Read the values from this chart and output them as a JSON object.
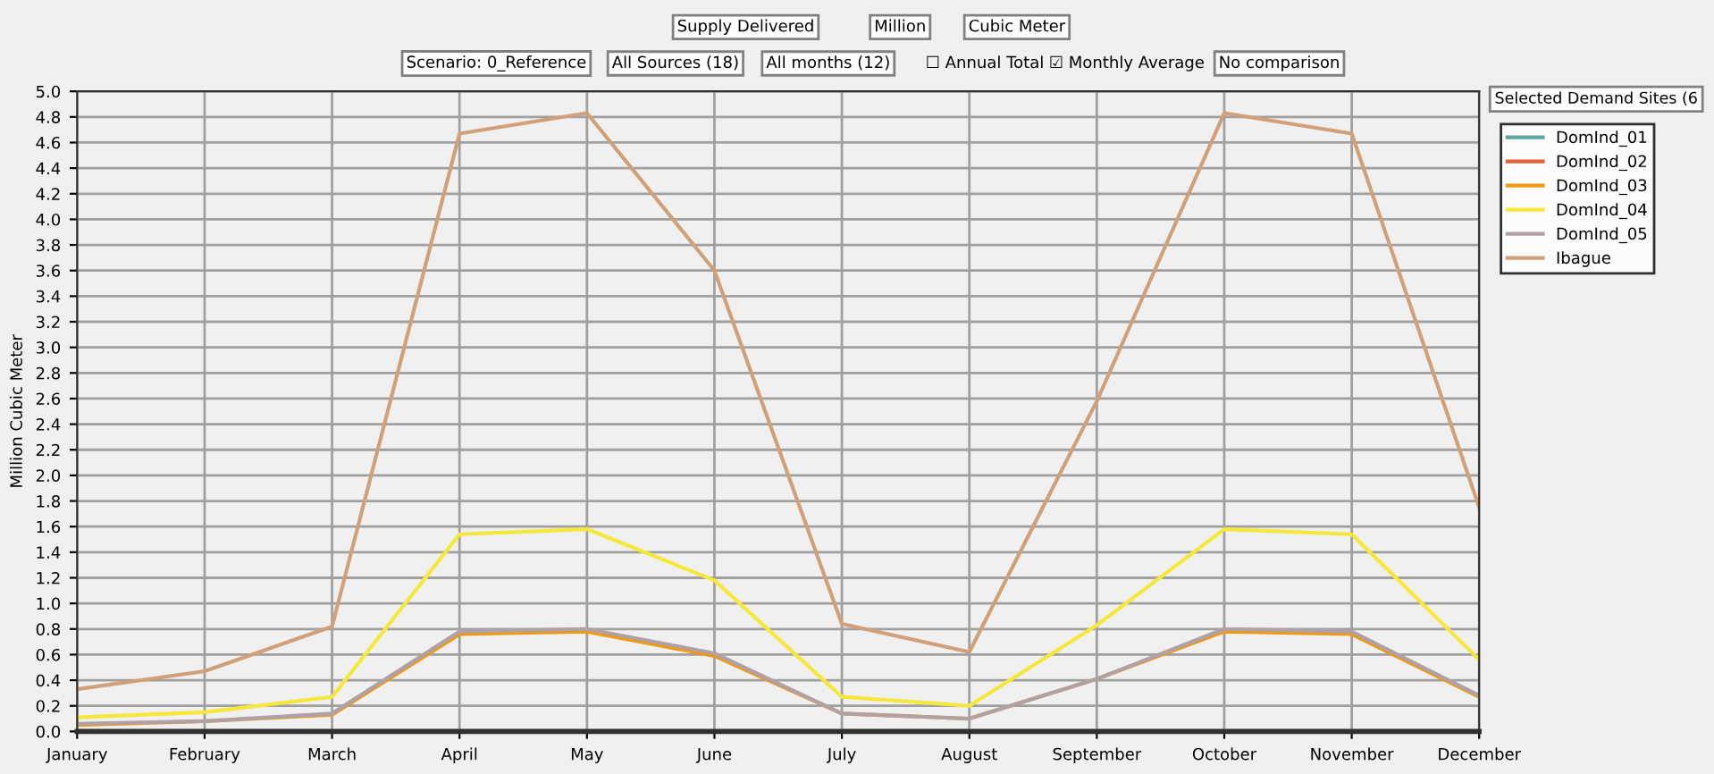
{
  "chart_data": {
    "type": "line",
    "ylabel": "Million Cubic Meter",
    "categories": [
      "January",
      "February",
      "March",
      "April",
      "May",
      "June",
      "July",
      "August",
      "September",
      "October",
      "November",
      "December"
    ],
    "series": [
      {
        "name": "DomInd_01",
        "color": "#5fa8a0",
        "values": [
          null,
          null,
          null,
          null,
          null,
          null,
          null,
          null,
          null,
          null,
          null,
          null
        ]
      },
      {
        "name": "DomInd_02",
        "color": "#e0603a",
        "values": [
          null,
          null,
          null,
          null,
          null,
          null,
          null,
          null,
          null,
          null,
          null,
          null
        ]
      },
      {
        "name": "DomInd_03",
        "color": "#f09a10",
        "values": [
          0.05,
          0.08,
          0.13,
          0.76,
          0.78,
          0.59,
          0.14,
          0.1,
          0.41,
          0.78,
          0.76,
          0.27
        ]
      },
      {
        "name": "DomInd_04",
        "color": "#f5e83a",
        "values": [
          0.11,
          0.15,
          0.27,
          1.54,
          1.58,
          1.18,
          0.27,
          0.2,
          0.83,
          1.58,
          1.54,
          0.56
        ]
      },
      {
        "name": "DomInd_05",
        "color": "#b0a0a8",
        "values": [
          0.06,
          0.08,
          0.14,
          0.78,
          0.8,
          0.61,
          0.14,
          0.1,
          0.41,
          0.8,
          0.78,
          0.28
        ]
      },
      {
        "name": "Ibague",
        "color": "#d0a078",
        "values": [
          0.33,
          0.47,
          0.82,
          4.67,
          4.83,
          3.6,
          0.84,
          0.62,
          2.58,
          4.83,
          4.67,
          1.75
        ]
      }
    ],
    "ylim": [
      0,
      5
    ],
    "yticks": [
      {
        "value": 0,
        "label": "0.0"
      },
      0.2,
      0.4,
      0.6,
      0.8,
      {
        "value": 1,
        "label": "1.0"
      },
      1.2,
      1.4,
      1.6,
      1.8,
      {
        "value": 2,
        "label": "2.0"
      },
      2.2,
      2.4,
      2.6,
      2.8,
      {
        "value": 3,
        "label": "3.0"
      },
      3.2,
      3.4,
      3.6,
      3.8,
      {
        "value": 4,
        "label": "4.0"
      },
      4.2,
      4.4,
      4.6,
      4.8,
      {
        "value": 5,
        "label": "5.0"
      }
    ],
    "grid": true,
    "legend": "top right",
    "legend_title": "Selected Demand Sites (6",
    "marker": "none",
    "line_style": "solid",
    "annotations": [
      "Supply Delivered",
      "Million",
      "Cubic Meter",
      "Scenario: 0_Reference",
      "All Sources (18)",
      "All months (12)",
      "☐ Annual Total",
      "☑ Monthly Average",
      "No comparison"
    ]
  }
}
